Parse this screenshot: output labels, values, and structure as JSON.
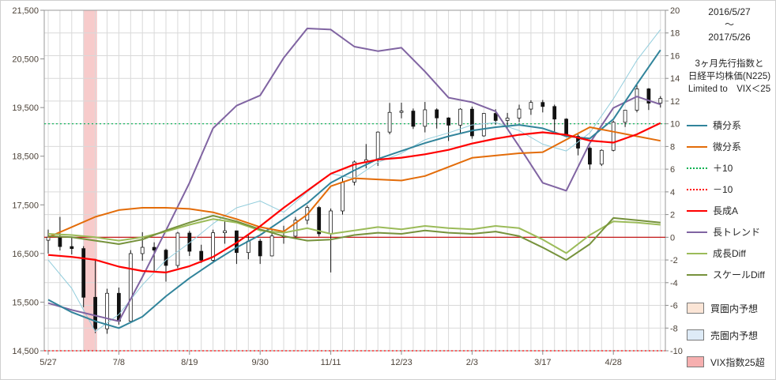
{
  "header": {
    "date_range": [
      "2016/5/27",
      "～",
      "2017/5/26"
    ],
    "subtitle_lines": [
      "3ヶ月先行指数と",
      "日経平均株価(N225)",
      "Limited to　VIX＜25"
    ]
  },
  "legend": {
    "line_items": [
      {
        "label": "積分系",
        "color": "#31849B",
        "style": "solid"
      },
      {
        "label": "微分系",
        "color": "#E36C09",
        "style": "solid"
      },
      {
        "label": "＋10",
        "color": "#00B050",
        "style": "dotted"
      },
      {
        "label": "－10",
        "color": "#FF0000",
        "style": "dotted"
      },
      {
        "label": "長成A",
        "color": "#FF0000",
        "style": "solid"
      },
      {
        "label": "長トレンド",
        "color": "#8064A2",
        "style": "solid"
      },
      {
        "label": "成長Diff",
        "color": "#9BBB59",
        "style": "solid"
      },
      {
        "label": "スケールDiff",
        "color": "#76923C",
        "style": "solid"
      }
    ],
    "box_items": [
      {
        "label": "買圏内予想",
        "fill": "#FBE5D6"
      },
      {
        "label": "売圏内予想",
        "fill": "#DEEBF7"
      },
      {
        "label": "VIX指数25超",
        "fill": "#F6AFAF"
      }
    ]
  },
  "chart_data": {
    "type": "candlestick+line",
    "x_axis": {
      "unit": "week",
      "total_weeks": 53,
      "ticks": [
        {
          "label": "5/27",
          "week": 0
        },
        {
          "label": "7/8",
          "week": 6
        },
        {
          "label": "8/19",
          "week": 12
        },
        {
          "label": "9/30",
          "week": 18
        },
        {
          "label": "11/11",
          "week": 24
        },
        {
          "label": "12/23",
          "week": 30
        },
        {
          "label": "2/3",
          "week": 36
        },
        {
          "label": "3/17",
          "week": 42
        },
        {
          "label": "4/28",
          "week": 48
        }
      ]
    },
    "left_axis": {
      "min": 14500,
      "max": 21500,
      "ticks": [
        {
          "label": "21,500",
          "value": 21500
        },
        {
          "label": "20,500",
          "value": 20500
        },
        {
          "label": "19,500",
          "value": 19500
        },
        {
          "label": "18,500",
          "value": 18500
        },
        {
          "label": "17,500",
          "value": 17500
        },
        {
          "label": "16,500",
          "value": 16500
        },
        {
          "label": "15,500",
          "value": 15500
        },
        {
          "label": "14,500",
          "value": 14500
        }
      ]
    },
    "right_axis": {
      "min": -10,
      "max": 20,
      "ticks": [
        {
          "label": "20",
          "value": 20
        },
        {
          "label": "18",
          "value": 18
        },
        {
          "label": "16",
          "value": 16
        },
        {
          "label": "14",
          "value": 14
        },
        {
          "label": "12",
          "value": 12
        },
        {
          "label": "10",
          "value": 10
        },
        {
          "label": "8",
          "value": 8
        },
        {
          "label": "6",
          "value": 6
        },
        {
          "label": "4",
          "value": 4
        },
        {
          "label": "2",
          "value": 2
        },
        {
          "label": "0",
          "value": 0
        },
        {
          "label": "-2",
          "value": -2
        },
        {
          "label": "-4",
          "value": -4
        },
        {
          "label": "-6",
          "value": -6
        },
        {
          "label": "-8",
          "value": -8
        },
        {
          "label": "-10",
          "value": -10
        }
      ]
    },
    "ref_lines": [
      {
        "name": "＋10",
        "axis": "right",
        "value": 10,
        "color": "#00B050",
        "dash": "2 3",
        "width": 1.2
      },
      {
        "name": "－10",
        "axis": "right",
        "value": -10,
        "color": "#FF0000",
        "dash": "2 3",
        "width": 1.2
      },
      {
        "name": "0",
        "axis": "right",
        "value": 0,
        "color": "#C00000",
        "dash": "",
        "width": 1.2
      }
    ],
    "bands": [
      {
        "name": "VIX指数25超",
        "from_week": 3.0,
        "to_week": 4.15,
        "fill": "#F0A0A0",
        "opacity": 0.55
      }
    ],
    "n225_weekly_ohlc": [
      [
        16772,
        16990,
        16498,
        16835
      ],
      [
        16835,
        17252,
        16562,
        16642
      ],
      [
        16642,
        16830,
        16480,
        16601
      ],
      [
        16601,
        16650,
        15395,
        15600
      ],
      [
        15600,
        16389,
        14864,
        14952
      ],
      [
        14952,
        15775,
        14850,
        15682
      ],
      [
        15682,
        15800,
        15037,
        15107
      ],
      [
        15107,
        16569,
        15100,
        16498
      ],
      [
        16498,
        16938,
        16350,
        16627
      ],
      [
        16627,
        16730,
        16112,
        16569
      ],
      [
        16569,
        16600,
        15921,
        16254
      ],
      [
        16254,
        16943,
        16200,
        16920
      ],
      [
        16920,
        16965,
        16450,
        16546
      ],
      [
        16546,
        16680,
        16305,
        16361
      ],
      [
        16361,
        16990,
        16300,
        16926
      ],
      [
        16926,
        17156,
        16700,
        16966
      ],
      [
        16966,
        16970,
        16285,
        16519
      ],
      [
        16519,
        16900,
        16380,
        16754
      ],
      [
        16754,
        16800,
        16285,
        16450
      ],
      [
        16450,
        16999,
        16440,
        16860
      ],
      [
        16860,
        17070,
        16700,
        16856
      ],
      [
        16856,
        17250,
        16800,
        17185
      ],
      [
        17185,
        17490,
        17100,
        17446
      ],
      [
        17446,
        17475,
        16850,
        16905
      ],
      [
        16905,
        17425,
        16111,
        17375
      ],
      [
        17375,
        18050,
        17300,
        17968
      ],
      [
        17968,
        18410,
        17900,
        18381
      ],
      [
        18381,
        18750,
        18250,
        18426
      ],
      [
        18426,
        19010,
        18300,
        18996
      ],
      [
        18996,
        19595,
        18950,
        19401
      ],
      [
        19401,
        19600,
        19280,
        19428
      ],
      [
        19428,
        19480,
        19060,
        19114
      ],
      [
        19114,
        19615,
        18990,
        19454
      ],
      [
        19454,
        19484,
        19069,
        19287
      ],
      [
        19287,
        19301,
        18813,
        19138
      ],
      [
        19138,
        19486,
        18980,
        19467
      ],
      [
        19467,
        19520,
        18860,
        18918
      ],
      [
        18918,
        19388,
        18900,
        19379
      ],
      [
        19379,
        19465,
        19149,
        19235
      ],
      [
        19235,
        19390,
        19080,
        19284
      ],
      [
        19284,
        19560,
        19200,
        19469
      ],
      [
        19469,
        19650,
        19350,
        19605
      ],
      [
        19605,
        19656,
        19400,
        19522
      ],
      [
        19522,
        19560,
        18973,
        19263
      ],
      [
        19263,
        19280,
        18890,
        18909
      ],
      [
        18909,
        18950,
        18517,
        18665
      ],
      [
        18665,
        18700,
        18224,
        18336
      ],
      [
        18336,
        18640,
        18300,
        18621
      ],
      [
        18621,
        19230,
        18600,
        19197
      ],
      [
        19197,
        19450,
        19100,
        19446
      ],
      [
        19446,
        19998,
        19400,
        19884
      ],
      [
        19884,
        19900,
        19450,
        19591
      ],
      [
        19591,
        19735,
        19500,
        19687
      ]
    ],
    "series": [
      {
        "name": "",
        "axis": "right",
        "color": "#92CDDC",
        "width": 1,
        "week_step": 2,
        "values": [
          -2.0,
          -4.5,
          -8.3,
          -6.8,
          -4.2,
          -2.0,
          -0.5,
          1.2,
          2.6,
          3.2,
          2.2,
          4.0,
          5.6,
          5.2,
          6.6,
          7.4,
          8.6,
          9.2,
          9.9,
          10.1,
          9.4,
          8.2,
          7.6,
          9.2,
          12.2,
          15.6,
          18.3
        ]
      },
      {
        "name": "長トレンド",
        "axis": "right",
        "color": "#8064A2",
        "width": 2,
        "week_step": 2,
        "values": [
          -5.8,
          -6.4,
          -6.9,
          -7.4,
          -3.5,
          0.6,
          4.8,
          9.6,
          11.6,
          12.5,
          15.8,
          18.4,
          18.3,
          16.8,
          16.4,
          16.7,
          14.6,
          12.3,
          11.9,
          11.1,
          8.0,
          4.8,
          4.1,
          8.3,
          11.4,
          12.4,
          11.7
        ]
      },
      {
        "name": "積分系",
        "axis": "right",
        "color": "#31849B",
        "width": 2,
        "week_step": 2,
        "values": [
          -5.5,
          -6.6,
          -7.4,
          -8.0,
          -7.0,
          -5.2,
          -3.6,
          -2.2,
          -0.9,
          0.2,
          1.6,
          3.0,
          4.8,
          5.9,
          6.9,
          7.6,
          8.3,
          8.9,
          9.4,
          9.7,
          9.9,
          9.6,
          8.9,
          8.7,
          10.4,
          13.5,
          16.5
        ]
      },
      {
        "name": "微分系",
        "axis": "right",
        "color": "#E36C09",
        "width": 2,
        "week_step": 2,
        "values": [
          0.0,
          0.9,
          1.8,
          2.4,
          2.6,
          2.6,
          2.5,
          2.2,
          1.6,
          0.9,
          0.5,
          2.0,
          4.5,
          5.2,
          5.1,
          5.0,
          5.4,
          6.2,
          7.0,
          7.2,
          7.4,
          7.5,
          8.6,
          9.7,
          9.3,
          8.9,
          8.5
        ]
      },
      {
        "name": "成長Diff",
        "axis": "right",
        "color": "#9BBB59",
        "width": 2,
        "week_step": 2,
        "values": [
          0.3,
          0.2,
          0.0,
          -0.3,
          0.0,
          0.5,
          1.1,
          1.6,
          1.3,
          0.6,
          0.4,
          0.8,
          0.3,
          0.6,
          0.9,
          0.7,
          1.0,
          0.8,
          0.7,
          1.0,
          0.8,
          -0.2,
          -1.4,
          0.2,
          1.4,
          1.3,
          1.1
        ]
      },
      {
        "name": "スケールDiff",
        "axis": "right",
        "color": "#76923C",
        "width": 2,
        "week_step": 2,
        "values": [
          0.1,
          0.0,
          -0.3,
          -0.6,
          -0.2,
          0.6,
          1.3,
          1.9,
          1.4,
          0.7,
          0.1,
          -0.3,
          -0.2,
          0.2,
          0.4,
          0.3,
          0.6,
          0.4,
          0.3,
          0.5,
          0.1,
          -0.9,
          -2.0,
          -0.6,
          1.7,
          1.5,
          1.3
        ]
      },
      {
        "name": "長成A",
        "axis": "left",
        "color": "#FF0000",
        "width": 2.2,
        "week_step": 2,
        "values": [
          16470,
          16430,
          16370,
          16230,
          16140,
          16110,
          16240,
          16430,
          16720,
          17060,
          17440,
          17790,
          18140,
          18330,
          18430,
          18470,
          18540,
          18630,
          18760,
          18860,
          18940,
          18990,
          18940,
          18820,
          18780,
          18950,
          19180
        ]
      }
    ]
  }
}
